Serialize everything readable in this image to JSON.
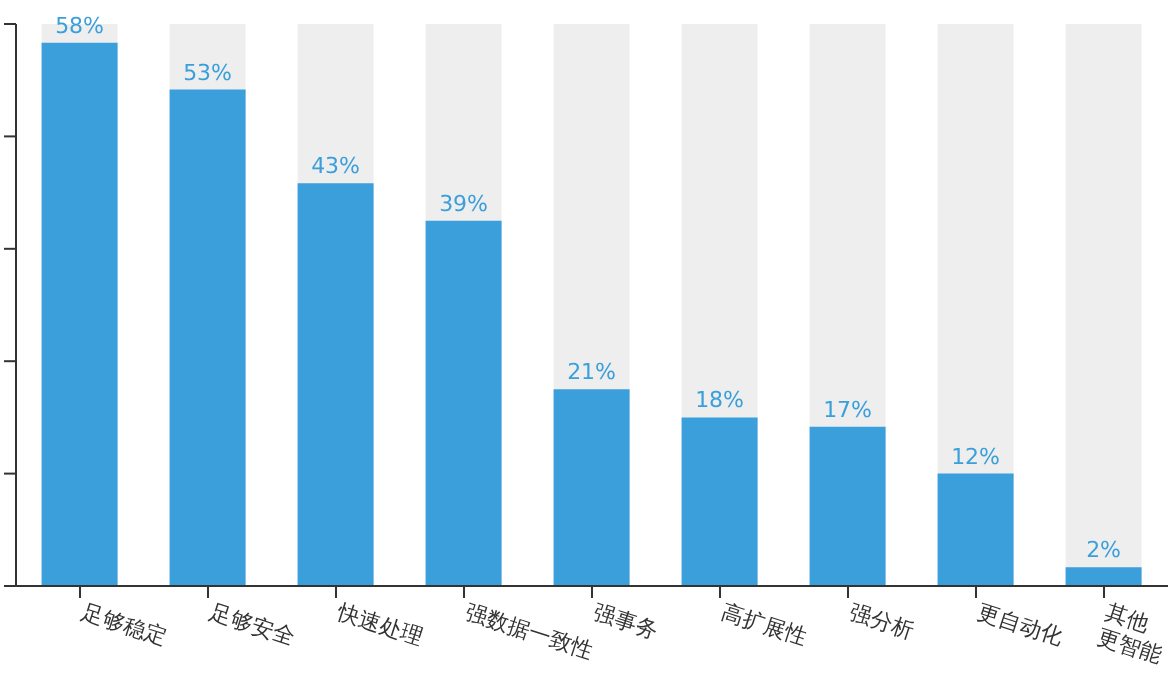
{
  "chart_data": {
    "type": "bar",
    "categories": [
      "足够稳定",
      "足够安全",
      "快速处理",
      "强数据一致性",
      "强事务",
      "高扩展性",
      "强分析",
      "更自动化",
      "其他更智能"
    ],
    "values": [
      58,
      53,
      43,
      39,
      21,
      18,
      17,
      12,
      2
    ],
    "value_labels": [
      "58%",
      "53%",
      "43%",
      "39%",
      "21%",
      "18%",
      "17%",
      "12%",
      "2%"
    ],
    "color": "#3a9fdb",
    "ylim": [
      0,
      60
    ],
    "yticks": [
      {
        "value": 0,
        "label": null
      },
      {
        "value": 12,
        "label": null
      },
      {
        "value": 24,
        "label": null
      },
      {
        "value": 36,
        "label": null
      },
      {
        "value": 48,
        "label": null
      },
      {
        "value": 60,
        "label": null
      }
    ],
    "tick_labels": "x"
  }
}
